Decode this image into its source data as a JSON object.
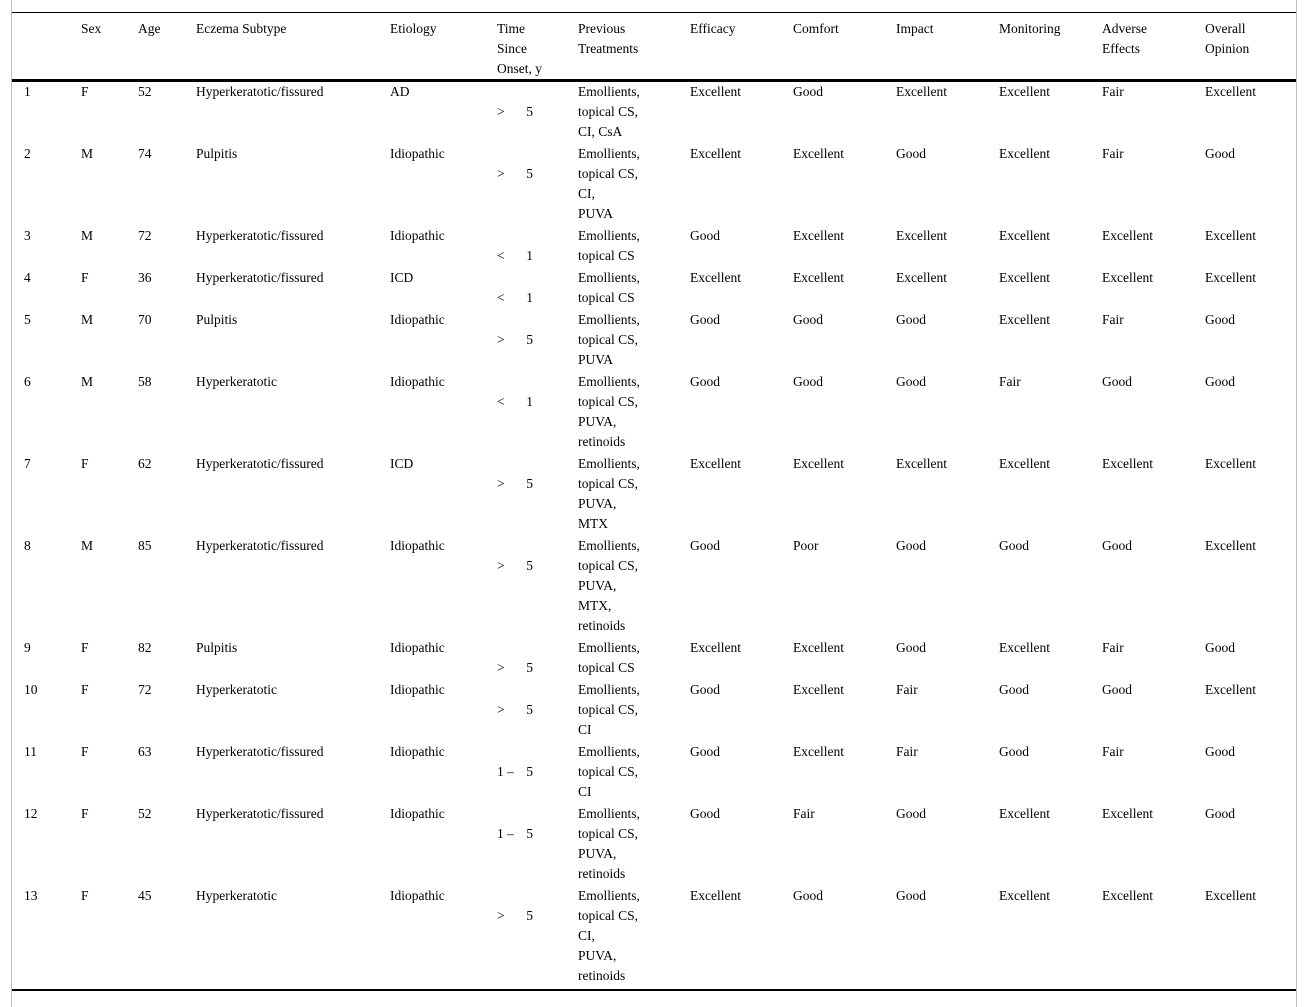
{
  "table": {
    "columns": [
      {
        "key": "id",
        "label": ""
      },
      {
        "key": "sex",
        "label": "Sex"
      },
      {
        "key": "age",
        "label": "Age"
      },
      {
        "key": "subtype",
        "label": "Eczema Subtype"
      },
      {
        "key": "etiology",
        "label": "Etiology"
      },
      {
        "key": "time",
        "label": "Time\nSince\nOnset, y"
      },
      {
        "key": "treatments",
        "label": "Previous\nTreatments"
      },
      {
        "key": "efficacy",
        "label": "Efficacy"
      },
      {
        "key": "comfort",
        "label": "Comfort"
      },
      {
        "key": "impact",
        "label": "Impact"
      },
      {
        "key": "monitoring",
        "label": "Monitoring"
      },
      {
        "key": "adverse_effects",
        "label": "Adverse\nEffects"
      },
      {
        "key": "overall_opinion",
        "label": "Overall\nOpinion"
      }
    ],
    "rows": [
      {
        "id": "1",
        "sex": "F",
        "age": "52",
        "subtype": "Hyperkeratotic/fissured",
        "etiology": "AD",
        "time": [
          ">",
          "5"
        ],
        "treatments": "Emollients,\ntopical CS,\nCI, CsA",
        "efficacy": "Excellent",
        "comfort": "Good",
        "impact": "Excellent",
        "monitoring": "Excellent",
        "adverse_effects": "Fair",
        "overall_opinion": "Excellent"
      },
      {
        "id": "2",
        "sex": "M",
        "age": "74",
        "subtype": "Pulpitis",
        "etiology": "Idiopathic",
        "time": [
          ">",
          "5"
        ],
        "treatments": "Emollients,\ntopical CS,\nCI,\nPUVA",
        "efficacy": "Excellent",
        "comfort": "Excellent",
        "impact": "Good",
        "monitoring": "Excellent",
        "adverse_effects": "Fair",
        "overall_opinion": "Good"
      },
      {
        "id": "3",
        "sex": "M",
        "age": "72",
        "subtype": "Hyperkeratotic/fissured",
        "etiology": "Idiopathic",
        "time": [
          "<",
          "1"
        ],
        "treatments": "Emollients,\ntopical CS",
        "efficacy": "Good",
        "comfort": "Excellent",
        "impact": "Excellent",
        "monitoring": "Excellent",
        "adverse_effects": "Excellent",
        "overall_opinion": "Excellent"
      },
      {
        "id": "4",
        "sex": "F",
        "age": "36",
        "subtype": "Hyperkeratotic/fissured",
        "etiology": "ICD",
        "time": [
          "<",
          "1"
        ],
        "treatments": "Emollients,\ntopical CS",
        "efficacy": "Excellent",
        "comfort": "Excellent",
        "impact": "Excellent",
        "monitoring": "Excellent",
        "adverse_effects": "Excellent",
        "overall_opinion": "Excellent"
      },
      {
        "id": "5",
        "sex": "M",
        "age": "70",
        "subtype": "Pulpitis",
        "etiology": "Idiopathic",
        "time": [
          ">",
          "5"
        ],
        "treatments": "Emollients,\ntopical CS,\nPUVA",
        "efficacy": "Good",
        "comfort": "Good",
        "impact": "Good",
        "monitoring": "Excellent",
        "adverse_effects": "Fair",
        "overall_opinion": "Good"
      },
      {
        "id": "6",
        "sex": "M",
        "age": "58",
        "subtype": "Hyperkeratotic",
        "etiology": "Idiopathic",
        "time": [
          "<",
          "1"
        ],
        "treatments": "Emollients,\ntopical CS,\nPUVA,\nretinoids",
        "efficacy": "Good",
        "comfort": "Good",
        "impact": "Good",
        "monitoring": "Fair",
        "adverse_effects": "Good",
        "overall_opinion": "Good"
      },
      {
        "id": "7",
        "sex": "F",
        "age": "62",
        "subtype": "Hyperkeratotic/fissured",
        "etiology": "ICD",
        "time": [
          ">",
          "5"
        ],
        "treatments": "Emollients,\ntopical CS,\nPUVA,\nMTX",
        "efficacy": "Excellent",
        "comfort": "Excellent",
        "impact": "Excellent",
        "monitoring": "Excellent",
        "adverse_effects": "Excellent",
        "overall_opinion": "Excellent"
      },
      {
        "id": "8",
        "sex": "M",
        "age": "85",
        "subtype": "Hyperkeratotic/fissured",
        "etiology": "Idiopathic",
        "time": [
          ">",
          "5"
        ],
        "treatments": "Emollients,\ntopical CS,\nPUVA,\nMTX,\nretinoids",
        "efficacy": "Good",
        "comfort": "Poor",
        "impact": "Good",
        "monitoring": "Good",
        "adverse_effects": "Good",
        "overall_opinion": "Excellent"
      },
      {
        "id": "9",
        "sex": "F",
        "age": "82",
        "subtype": "Pulpitis",
        "etiology": "Idiopathic",
        "time": [
          ">",
          "5"
        ],
        "treatments": "Emollients,\ntopical CS",
        "efficacy": "Excellent",
        "comfort": "Excellent",
        "impact": "Good",
        "monitoring": "Excellent",
        "adverse_effects": "Fair",
        "overall_opinion": "Good"
      },
      {
        "id": "10",
        "sex": "F",
        "age": "72",
        "subtype": "Hyperkeratotic",
        "etiology": "Idiopathic",
        "time": [
          ">",
          "5"
        ],
        "treatments": "Emollients,\ntopical CS,\nCI",
        "efficacy": "Good",
        "comfort": "Excellent",
        "impact": "Fair",
        "monitoring": "Good",
        "adverse_effects": "Good",
        "overall_opinion": "Excellent"
      },
      {
        "id": "11",
        "sex": "F",
        "age": "63",
        "subtype": "Hyperkeratotic/fissured",
        "etiology": "Idiopathic",
        "time": [
          "1 –",
          "5"
        ],
        "treatments": "Emollients,\ntopical CS,\nCI",
        "efficacy": "Good",
        "comfort": "Excellent",
        "impact": "Fair",
        "monitoring": "Good",
        "adverse_effects": "Fair",
        "overall_opinion": "Good"
      },
      {
        "id": "12",
        "sex": "F",
        "age": "52",
        "subtype": "Hyperkeratotic/fissured",
        "etiology": "Idiopathic",
        "time": [
          "1 –",
          "5"
        ],
        "treatments": "Emollients,\ntopical CS,\nPUVA,\nretinoids",
        "efficacy": "Good",
        "comfort": "Fair",
        "impact": "Good",
        "monitoring": "Excellent",
        "adverse_effects": "Excellent",
        "overall_opinion": "Good"
      },
      {
        "id": "13",
        "sex": "F",
        "age": "45",
        "subtype": "Hyperkeratotic",
        "etiology": "Idiopathic",
        "time": [
          ">",
          "5"
        ],
        "treatments": "Emollients,\ntopical CS,\nCI,\nPUVA,\nretinoids",
        "efficacy": "Excellent",
        "comfort": "Good",
        "impact": "Good",
        "monitoring": "Excellent",
        "adverse_effects": "Excellent",
        "overall_opinion": "Excellent"
      }
    ]
  }
}
